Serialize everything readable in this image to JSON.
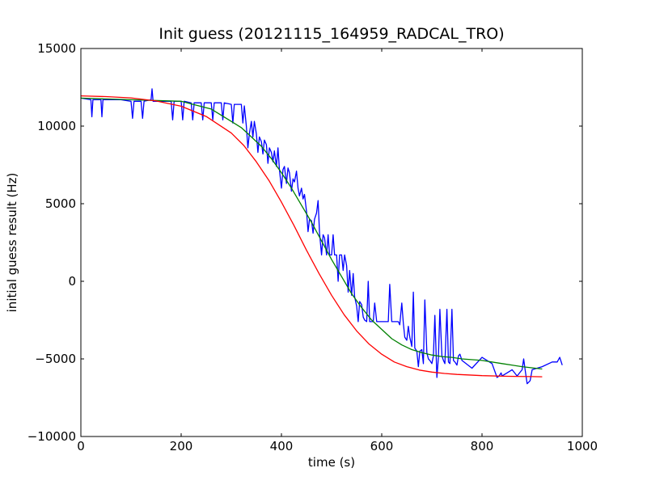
{
  "chart_data": {
    "type": "line",
    "title": "Init guess (20121115_164959_RADCAL_TRO)",
    "xlabel": "time (s)",
    "ylabel": "initial guess result (Hz)",
    "xlim": [
      0,
      1000
    ],
    "ylim": [
      -10000,
      15000
    ],
    "xticks": [
      0,
      200,
      400,
      600,
      800,
      1000
    ],
    "yticks": [
      -10000,
      -5000,
      0,
      5000,
      10000,
      15000
    ],
    "xtick_labels": [
      "0",
      "200",
      "400",
      "600",
      "800",
      "1000"
    ],
    "ytick_labels": [
      "−10000",
      "−5000",
      "0",
      "5000",
      "10000",
      "15000"
    ],
    "grid": false,
    "legend": "none",
    "series": [
      {
        "color": "#0000ff",
        "x": [
          0,
          20,
          22,
          24,
          40,
          42,
          44,
          60,
          80,
          100,
          103,
          106,
          120,
          123,
          126,
          140,
          142,
          144,
          160,
          180,
          183,
          186,
          200,
          203,
          206,
          220,
          223,
          226,
          240,
          243,
          246,
          260,
          263,
          266,
          280,
          283,
          286,
          300,
          303,
          306,
          320,
          323,
          326,
          330,
          333,
          336,
          340,
          343,
          346,
          350,
          353,
          356,
          360,
          363,
          366,
          370,
          373,
          376,
          380,
          383,
          386,
          390,
          393,
          396,
          400,
          403,
          406,
          410,
          413,
          416,
          420,
          423,
          426,
          430,
          433,
          436,
          440,
          443,
          446,
          450,
          453,
          456,
          460,
          463,
          466,
          470,
          473,
          476,
          480,
          483,
          486,
          490,
          493,
          496,
          500,
          503,
          506,
          510,
          513,
          516,
          520,
          523,
          526,
          530,
          533,
          536,
          540,
          543,
          546,
          550,
          553,
          556,
          560,
          563,
          566,
          570,
          573,
          576,
          580,
          583,
          586,
          590,
          593,
          596,
          600,
          610,
          613,
          616,
          620,
          623,
          626,
          630,
          633,
          636,
          640,
          643,
          646,
          650,
          653,
          656,
          660,
          663,
          666,
          670,
          673,
          676,
          680,
          683,
          686,
          690,
          693,
          696,
          700,
          703,
          706,
          710,
          713,
          716,
          720,
          723,
          726,
          730,
          733,
          736,
          740,
          743,
          746,
          750,
          753,
          756,
          760,
          780,
          800,
          820,
          830,
          834,
          838,
          840,
          850,
          860,
          870,
          880,
          883,
          886,
          890,
          893,
          896,
          900,
          920,
          940,
          950,
          955,
          960
        ],
        "y": [
          11800,
          11700,
          10600,
          11700,
          11700,
          10600,
          11700,
          11700,
          11700,
          11600,
          10500,
          11600,
          11600,
          10500,
          11600,
          11700,
          12400,
          11600,
          11600,
          11600,
          10400,
          11600,
          11600,
          10400,
          11600,
          11500,
          10400,
          11500,
          11500,
          10400,
          11500,
          11500,
          10400,
          11500,
          11500,
          10400,
          11500,
          11400,
          10200,
          11400,
          11400,
          10200,
          11300,
          10000,
          8600,
          9500,
          10300,
          9300,
          10300,
          9500,
          8300,
          9300,
          9000,
          8200,
          9100,
          8800,
          7600,
          8600,
          8300,
          7700,
          8400,
          7400,
          8600,
          7200,
          6000,
          7200,
          7400,
          6300,
          7300,
          7000,
          5800,
          6600,
          6400,
          7100,
          6000,
          5500,
          6000,
          5300,
          5600,
          4500,
          3200,
          4000,
          3900,
          3100,
          4000,
          4400,
          5200,
          3100,
          1700,
          3000,
          2800,
          1700,
          3000,
          1700,
          1700,
          3000,
          1700,
          1700,
          0,
          1700,
          1700,
          700,
          1700,
          1000,
          -700,
          700,
          -900,
          500,
          -1000,
          -1600,
          -2600,
          -1300,
          -1500,
          -2300,
          -2500,
          -2600,
          0,
          -2600,
          -2600,
          -2600,
          -1400,
          -2600,
          -2600,
          -2600,
          -2600,
          -2600,
          -2600,
          -200,
          -2600,
          -2600,
          -2600,
          -2600,
          -2600,
          -2800,
          -1400,
          -2700,
          -3600,
          -3800,
          -2900,
          -3600,
          -4200,
          -700,
          -4300,
          -4500,
          -5500,
          -4500,
          -4400,
          -5300,
          -1200,
          -4600,
          -5000,
          -5100,
          -5300,
          -4800,
          -2200,
          -6200,
          -4900,
          -1800,
          -4800,
          -5100,
          -5300,
          -1800,
          -5200,
          -5300,
          -1800,
          -5100,
          -5200,
          -5400,
          -4800,
          -4700,
          -5100,
          -5600,
          -4900,
          -5300,
          -6200,
          -6100,
          -5900,
          -6100,
          -5900,
          -5700,
          -6100,
          -5700,
          -5000,
          -5700,
          -6600,
          -6500,
          -6400,
          -5700,
          -5500,
          -5200,
          -5200,
          -4900,
          -5400
        ]
      },
      {
        "color": "#008000",
        "x": [
          0,
          100,
          200,
          260,
          300,
          320,
          340,
          360,
          380,
          400,
          420,
          440,
          460,
          480,
          500,
          520,
          540,
          560,
          580,
          600,
          620,
          640,
          660,
          680,
          700,
          720,
          740,
          760,
          800,
          840,
          880,
          920
        ],
        "y": [
          11800,
          11700,
          11600,
          11100,
          10300,
          9900,
          9300,
          8700,
          7900,
          7000,
          6000,
          4900,
          3800,
          2600,
          1400,
          300,
          -800,
          -1700,
          -2500,
          -3100,
          -3700,
          -4100,
          -4400,
          -4600,
          -4750,
          -4850,
          -4900,
          -5000,
          -5100,
          -5300,
          -5500,
          -5650
        ]
      },
      {
        "color": "#ff0000",
        "x": [
          0,
          50,
          100,
          150,
          200,
          250,
          300,
          325,
          350,
          375,
          400,
          425,
          450,
          475,
          500,
          525,
          550,
          575,
          600,
          625,
          650,
          675,
          700,
          725,
          750,
          800,
          850,
          900,
          920
        ],
        "y": [
          11950,
          11900,
          11820,
          11620,
          11280,
          10620,
          9550,
          8750,
          7700,
          6500,
          5100,
          3600,
          2000,
          500,
          -900,
          -2150,
          -3200,
          -4050,
          -4700,
          -5200,
          -5500,
          -5720,
          -5850,
          -5940,
          -6000,
          -6080,
          -6120,
          -6140,
          -6150
        ]
      }
    ]
  }
}
